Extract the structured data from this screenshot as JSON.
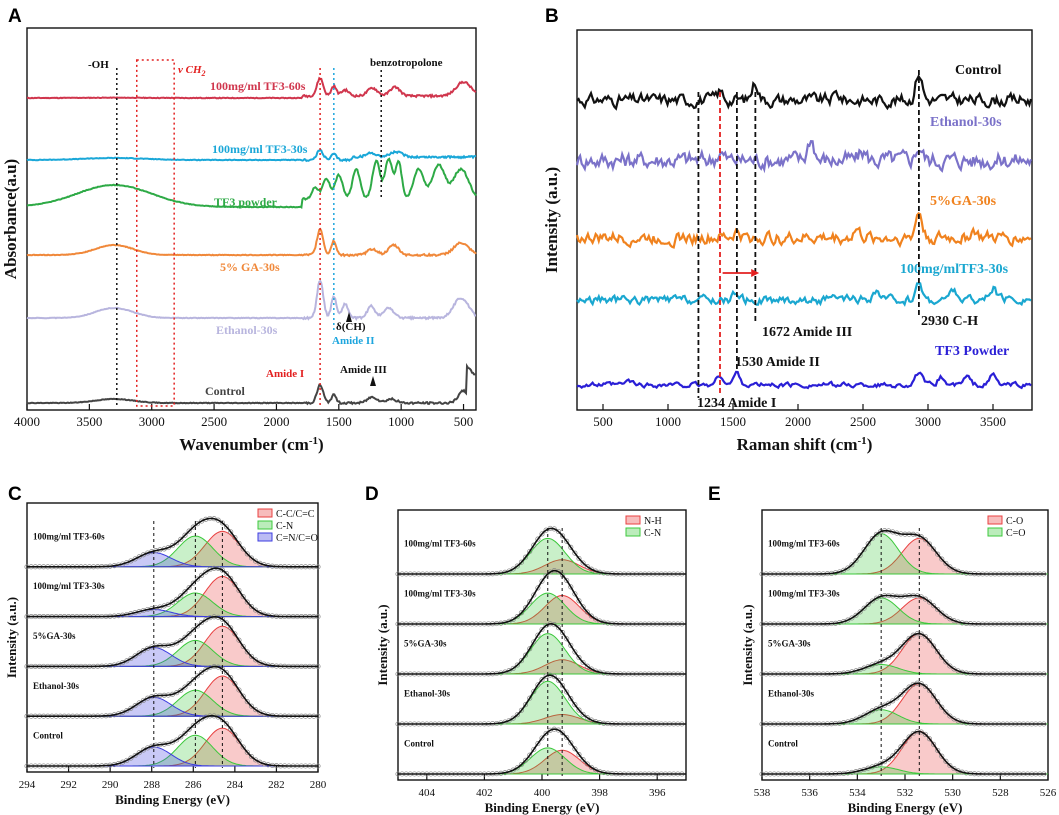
{
  "chart_data": [
    {
      "panel": "A",
      "type": "line",
      "xlabel": "Wavenumber (cm",
      "xlabel_sup": "-1",
      "xlabel_end": ")",
      "ylabel": "Absorbance(a.u)",
      "xlim": [
        4000,
        400
      ],
      "xticks": [
        "4000",
        "3500",
        "3000",
        "2500",
        "2000",
        "1500",
        "1000",
        "500"
      ],
      "series": [
        {
          "name": "100mg/ml TF3-60s",
          "color": "#d0364d"
        },
        {
          "name": "100mg/ml TF3-30s",
          "color": "#1aa7d8"
        },
        {
          "name": "TF3 powder",
          "color": "#2eaa46"
        },
        {
          "name": "5% GA-30s",
          "color": "#f0883a"
        },
        {
          "name": "Ethanol-30s",
          "color": "#b8b5de"
        },
        {
          "name": "Control",
          "color": "#444444"
        }
      ],
      "annotations": {
        "oh": "-OH",
        "ch2": "ν CH",
        "ch2_sub": "2",
        "benzo": "benzotropolone",
        "dch2": "δ(CH",
        "dch2_end": "2)",
        "amide1": "Amide I",
        "amide2": "Amide II",
        "amide3": "Amide III"
      },
      "marker_lines_cm1": [
        3280,
        1650,
        1540,
        1160
      ]
    },
    {
      "panel": "B",
      "type": "line",
      "xlabel": "Raman shift (cm",
      "xlabel_sup": "-1",
      "xlabel_end": ")",
      "ylabel": "Intensity (a.u.)",
      "xlim": [
        300,
        3800
      ],
      "xticks": [
        "500",
        "1000",
        "1500",
        "2000",
        "2500",
        "3000",
        "3500"
      ],
      "series": [
        {
          "name": "Control",
          "color": "#111111"
        },
        {
          "name": "Ethanol-30s",
          "color": "#7b72c9"
        },
        {
          "name": "5%GA-30s",
          "color": "#f0821e"
        },
        {
          "name": "100mg/mlTF3-30s",
          "color": "#1aa7d0"
        },
        {
          "name": "TF3 Powder",
          "color": "#2a1fd6"
        }
      ],
      "annotations": {
        "a1": "1234 Amide I",
        "a2": "1530 Amide II",
        "a3": "1672 Amide III",
        "ch": "2930 C-H"
      },
      "marker_lines_cm1": [
        1234,
        1400,
        1530,
        1672,
        2930
      ]
    },
    {
      "panel": "C",
      "type": "line",
      "xlabel": "Binding Energy (eV)",
      "ylabel": "Intensity (a.u.)",
      "xlim": [
        294,
        280
      ],
      "xticks": [
        "294",
        "292",
        "290",
        "288",
        "286",
        "284",
        "282",
        "280"
      ],
      "legend": [
        {
          "name": "C-C/C=C",
          "color": "#e84040"
        },
        {
          "name": "C-N",
          "color": "#3cc83c"
        },
        {
          "name": "C=N/C=O",
          "color": "#3c3ce0"
        }
      ],
      "components_eV": [
        284.6,
        285.9,
        287.9
      ],
      "series": [
        {
          "name": "100mg/ml TF3-60s",
          "amps": [
            0.75,
            0.65,
            0.3
          ]
        },
        {
          "name": "100mg/ml TF3-30s",
          "amps": [
            0.85,
            0.5,
            0.15
          ]
        },
        {
          "name": "5%GA-30s",
          "amps": [
            0.85,
            0.55,
            0.4
          ]
        },
        {
          "name": "Ethanol-30s",
          "amps": [
            0.85,
            0.55,
            0.4
          ]
        },
        {
          "name": "Control",
          "amps": [
            0.8,
            0.65,
            0.4
          ]
        }
      ]
    },
    {
      "panel": "D",
      "type": "line",
      "xlabel": "Binding Energy (eV)",
      "ylabel": "Intensity (a.u.)",
      "xlim": [
        405,
        395
      ],
      "xticks": [
        "404",
        "402",
        "400",
        "398",
        "396"
      ],
      "legend": [
        {
          "name": "N-H",
          "color": "#e84040"
        },
        {
          "name": "C-N",
          "color": "#3cc83c"
        }
      ],
      "components_eV": [
        399.3,
        399.8
      ],
      "series": [
        {
          "name": "100mg/ml TF3-60s",
          "amps": [
            0.3,
            0.75
          ]
        },
        {
          "name": "100mg/ml TF3-30s",
          "amps": [
            0.6,
            0.65
          ]
        },
        {
          "name": "5%GA-30s",
          "amps": [
            0.3,
            0.85
          ]
        },
        {
          "name": "Ethanol-30s",
          "amps": [
            0.2,
            0.9
          ]
        },
        {
          "name": "Control",
          "amps": [
            0.5,
            0.55
          ]
        }
      ]
    },
    {
      "panel": "E",
      "type": "line",
      "xlabel": "Binding Energy (eV)",
      "ylabel": "Intensity (a.u.)",
      "xlim": [
        538,
        526
      ],
      "xticks": [
        "538",
        "536",
        "534",
        "532",
        "530",
        "528",
        "526"
      ],
      "legend": [
        {
          "name": "C-O",
          "color": "#e84040"
        },
        {
          "name": "C=O",
          "color": "#3cc83c"
        }
      ],
      "components_eV": [
        531.4,
        533.0
      ],
      "series": [
        {
          "name": "100mg/ml TF3-60s",
          "amps": [
            0.75,
            0.85
          ]
        },
        {
          "name": "100mg/ml TF3-30s",
          "amps": [
            0.55,
            0.55
          ]
        },
        {
          "name": "5%GA-30s",
          "amps": [
            0.85,
            0.2
          ]
        },
        {
          "name": "Ethanol-30s",
          "amps": [
            0.85,
            0.3
          ]
        },
        {
          "name": "Control",
          "amps": [
            0.9,
            0.15
          ]
        }
      ]
    }
  ],
  "panel_letters": {
    "a": "A",
    "b": "B",
    "c": "C",
    "d": "D",
    "e": "E"
  }
}
